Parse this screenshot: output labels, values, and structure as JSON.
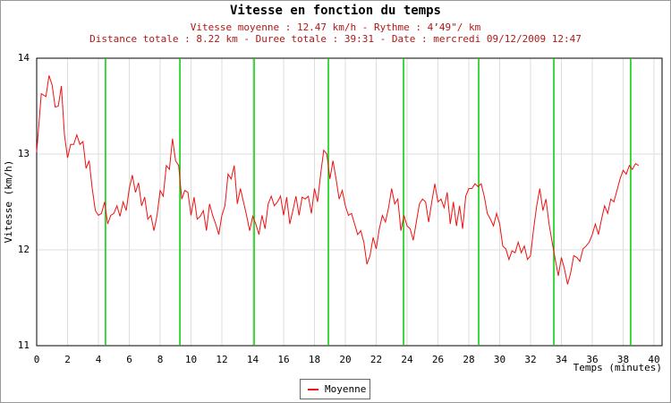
{
  "chart_data": {
    "type": "line",
    "title": "Vitesse en fonction du temps",
    "subtitle": [
      "Vitesse moyenne : 12.47 km/h - Rythme : 4’49\"/ km",
      "Distance totale : 8.22 km - Duree totale : 39:31 - Date : mercredi 09/12/2009 12:47"
    ],
    "ylabel": "Vitesse (km/h)",
    "xlabel": "Temps (minutes)",
    "xlim": [
      0,
      40
    ],
    "ylim": [
      11,
      14
    ],
    "xticks": [
      0,
      2,
      4,
      6,
      8,
      10,
      12,
      14,
      16,
      18,
      20,
      22,
      24,
      26,
      28,
      30,
      32,
      34,
      36,
      38,
      40
    ],
    "yticks": [
      11,
      12,
      13,
      14
    ],
    "grid": true,
    "legend": "bottom",
    "markers": {
      "color": "#00cc00",
      "x": [
        4.46,
        9.28,
        14.09,
        18.9,
        23.77,
        28.64,
        33.51,
        38.49
      ]
    },
    "x": [
      0,
      0.3,
      0.6,
      0.8,
      1.0,
      1.2,
      1.4,
      1.6,
      1.8,
      2.0,
      2.2,
      2.4,
      2.6,
      2.8,
      3.0,
      3.2,
      3.4,
      3.6,
      3.8,
      4.0,
      4.2,
      4.4,
      4.6,
      4.8,
      5.0,
      5.2,
      5.4,
      5.6,
      5.8,
      6.0,
      6.2,
      6.4,
      6.6,
      6.8,
      7.0,
      7.2,
      7.4,
      7.6,
      7.8,
      8.0,
      8.2,
      8.4,
      8.6,
      8.8,
      9.0,
      9.2,
      9.4,
      9.6,
      9.8,
      10.0,
      10.2,
      10.4,
      10.6,
      10.8,
      11.0,
      11.2,
      11.4,
      11.6,
      11.8,
      12.0,
      12.2,
      12.4,
      12.6,
      12.8,
      13.0,
      13.2,
      13.4,
      13.6,
      13.8,
      14.0,
      14.2,
      14.4,
      14.6,
      14.8,
      15.0,
      15.2,
      15.4,
      15.6,
      15.8,
      16.0,
      16.2,
      16.4,
      16.6,
      16.8,
      17.0,
      17.2,
      17.4,
      17.6,
      17.8,
      18.0,
      18.2,
      18.4,
      18.6,
      18.8,
      19.0,
      19.2,
      19.4,
      19.6,
      19.8,
      20.0,
      20.2,
      20.4,
      20.6,
      20.8,
      21.0,
      21.2,
      21.4,
      21.6,
      21.8,
      22.0,
      22.2,
      22.4,
      22.6,
      22.8,
      23.0,
      23.2,
      23.4,
      23.6,
      23.8,
      24.0,
      24.2,
      24.4,
      24.6,
      24.8,
      25.0,
      25.2,
      25.4,
      25.6,
      25.8,
      26.0,
      26.2,
      26.4,
      26.6,
      26.8,
      27.0,
      27.2,
      27.4,
      27.6,
      27.8,
      28.0,
      28.2,
      28.4,
      28.6,
      28.8,
      29.0,
      29.2,
      29.4,
      29.6,
      29.8,
      30.0,
      30.2,
      30.4,
      30.6,
      30.8,
      31.0,
      31.2,
      31.4,
      31.6,
      31.8,
      32.0,
      32.2,
      32.4,
      32.6,
      32.8,
      33.0,
      33.2,
      33.4,
      33.6,
      33.8,
      34.0,
      34.2,
      34.4,
      34.6,
      34.8,
      35.0,
      35.2,
      35.4,
      35.6,
      35.8,
      36.0,
      36.2,
      36.4,
      36.6,
      36.8,
      37.0,
      37.2,
      37.4,
      37.6,
      37.8,
      38.0,
      38.2,
      38.4,
      38.6,
      38.8,
      39.0
    ],
    "series": [
      {
        "name": "Moyenne",
        "color": "#ee1111",
        "values": [
          13.02,
          13.63,
          13.6,
          13.82,
          13.72,
          13.49,
          13.5,
          13.71,
          13.2,
          12.96,
          13.1,
          13.1,
          13.2,
          13.1,
          13.13,
          12.85,
          12.93,
          12.64,
          12.41,
          12.36,
          12.38,
          12.5,
          12.27,
          12.36,
          12.38,
          12.46,
          12.35,
          12.5,
          12.41,
          12.64,
          12.78,
          12.6,
          12.7,
          12.46,
          12.55,
          12.32,
          12.36,
          12.2,
          12.36,
          12.62,
          12.56,
          12.88,
          12.84,
          13.16,
          12.93,
          12.88,
          12.53,
          12.62,
          12.6,
          12.36,
          12.55,
          12.32,
          12.35,
          12.41,
          12.2,
          12.48,
          12.36,
          12.27,
          12.16,
          12.36,
          12.46,
          12.79,
          12.74,
          12.88,
          12.48,
          12.64,
          12.5,
          12.36,
          12.2,
          12.35,
          12.27,
          12.16,
          12.36,
          12.22,
          12.48,
          12.56,
          12.46,
          12.5,
          12.56,
          12.36,
          12.55,
          12.27,
          12.41,
          12.56,
          12.36,
          12.55,
          12.53,
          12.56,
          12.38,
          12.64,
          12.5,
          12.79,
          13.04,
          13.0,
          12.74,
          12.93,
          12.74,
          12.53,
          12.62,
          12.46,
          12.36,
          12.38,
          12.27,
          12.16,
          12.2,
          12.08,
          11.85,
          11.94,
          12.13,
          12.01,
          12.22,
          12.36,
          12.29,
          12.44,
          12.64,
          12.48,
          12.53,
          12.2,
          12.36,
          12.25,
          12.22,
          12.1,
          12.29,
          12.48,
          12.53,
          12.5,
          12.29,
          12.5,
          12.69,
          12.5,
          12.53,
          12.44,
          12.6,
          12.27,
          12.5,
          12.25,
          12.46,
          12.22,
          12.56,
          12.64,
          12.64,
          12.69,
          12.66,
          12.69,
          12.56,
          12.38,
          12.32,
          12.25,
          12.38,
          12.27,
          12.04,
          12.01,
          11.9,
          11.99,
          11.97,
          12.08,
          11.97,
          12.04,
          11.9,
          11.94,
          12.22,
          12.46,
          12.64,
          12.41,
          12.53,
          12.27,
          12.08,
          11.9,
          11.73,
          11.92,
          11.8,
          11.64,
          11.76,
          11.94,
          11.92,
          11.88,
          12.01,
          12.04,
          12.08,
          12.16,
          12.27,
          12.16,
          12.32,
          12.46,
          12.38,
          12.53,
          12.5,
          12.62,
          12.74,
          12.83,
          12.79,
          12.88,
          12.84,
          12.9,
          12.88
        ]
      }
    ]
  }
}
